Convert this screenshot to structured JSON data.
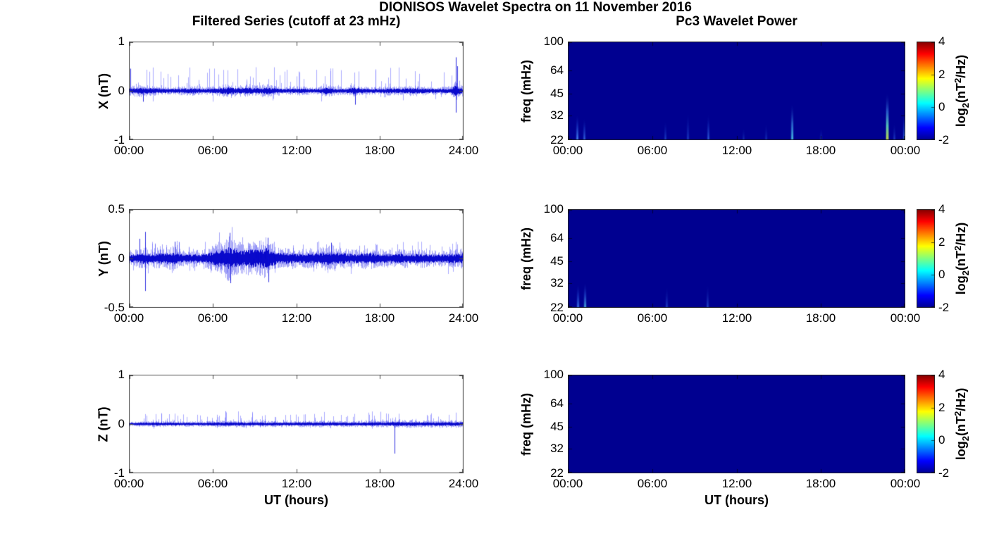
{
  "figure": {
    "title": "DIONISOS Wavelet Spectra on 11 November 2016",
    "left_column_title": "Filtered Series (cutoff at 23 mHz)",
    "right_column_title": "Pc3 Wavelet Power",
    "background": "#ffffff",
    "frame_color": "#4a4a4a",
    "heatmap_frame_color": "#222222",
    "series_colors": {
      "core": "rgba(0,0,200,0.95)",
      "fuzz": "rgba(30,30,235,0.40)",
      "spike": "rgba(90,90,255,0.50)",
      "major": "rgba(10,10,220,0.85)"
    }
  },
  "colorbar": {
    "range": [
      -2,
      4
    ],
    "ticks": [
      4,
      2,
      0,
      -2
    ],
    "tick_labels": [
      "4",
      "2",
      "0",
      "-2"
    ],
    "gradient_stops": [
      [
        0,
        "#000090"
      ],
      [
        0.125,
        "#0000ff"
      ],
      [
        0.375,
        "#00ffff"
      ],
      [
        0.625,
        "#ffff00"
      ],
      [
        0.875,
        "#ff0000"
      ],
      [
        1,
        "#800000"
      ]
    ],
    "label_parts": [
      {
        "t": "log"
      },
      {
        "t": "2",
        "s": "sub"
      },
      {
        "t": "(nT"
      },
      {
        "t": "2",
        "s": "sup"
      },
      {
        "t": "/Hz)"
      }
    ]
  },
  "chart_data": [
    {
      "id": "x-filtered",
      "type": "line",
      "panel": "left",
      "row": 0,
      "ylabel": "X (nT)",
      "xlabel": "",
      "yscale": "linear",
      "ylim": [
        -1,
        1
      ],
      "yticks": [
        1,
        0,
        -1
      ],
      "ytick_labels": [
        "1",
        "0",
        "-1"
      ],
      "xlim": [
        0,
        24
      ],
      "xticks": [
        0,
        6,
        12,
        18,
        24
      ],
      "xtick_labels": [
        "00:00",
        "06:00",
        "12:00",
        "18:00",
        "24:00"
      ],
      "series": {
        "seed": 101,
        "base_envelope": [
          [
            0,
            0.06
          ],
          [
            0.5,
            0.08
          ],
          [
            1.5,
            0.07
          ],
          [
            3,
            0.05
          ],
          [
            4.5,
            0.07
          ],
          [
            5.5,
            0.05
          ],
          [
            6.6,
            0.07
          ],
          [
            7.1,
            0.1
          ],
          [
            7.7,
            0.07
          ],
          [
            8.4,
            0.08
          ],
          [
            9.2,
            0.07
          ],
          [
            9.9,
            0.09
          ],
          [
            10.4,
            0.07
          ],
          [
            11.2,
            0.05
          ],
          [
            12.3,
            0.06
          ],
          [
            13.6,
            0.05
          ],
          [
            14.2,
            0.09
          ],
          [
            14.7,
            0.06
          ],
          [
            15.6,
            0.05
          ],
          [
            16.1,
            0.09
          ],
          [
            16.6,
            0.06
          ],
          [
            17.6,
            0.05
          ],
          [
            18.6,
            0.06
          ],
          [
            19.6,
            0.06
          ],
          [
            20.6,
            0.07
          ],
          [
            21.4,
            0.06
          ],
          [
            22.2,
            0.05
          ],
          [
            23.1,
            0.06
          ],
          [
            23.45,
            0.14
          ],
          [
            23.65,
            0.1
          ],
          [
            24,
            0.07
          ]
        ],
        "spike_groups": [
          {
            "seed": 7,
            "count": 62,
            "tmin": 0.1,
            "tmax": 23.8,
            "vmin": 0.12,
            "vmax": 0.48
          },
          {
            "seed": 8,
            "count": 14,
            "tmin": 0.5,
            "tmax": 23.5,
            "vmin": -0.22,
            "vmax": -0.1
          }
        ],
        "major_spikes": [
          [
            0.12,
            0.45
          ],
          [
            1.0,
            -0.22
          ],
          [
            16.2,
            -0.28
          ],
          [
            23.42,
            0.68
          ],
          [
            23.45,
            -0.44
          ],
          [
            23.55,
            0.5
          ]
        ]
      }
    },
    {
      "id": "x-wavelet",
      "type": "heatmap",
      "panel": "right",
      "row": 0,
      "ylabel": "freq (mHz)",
      "xlabel": "",
      "yscale": "log",
      "ylim": [
        22,
        100
      ],
      "yticks": [
        100,
        64,
        45,
        32,
        22
      ],
      "ytick_labels": [
        "100",
        "64",
        "45",
        "32",
        "22"
      ],
      "xlim": [
        0,
        24
      ],
      "xticks": [
        0,
        6,
        12,
        18,
        24
      ],
      "xtick_labels": [
        "00:00",
        "06:00",
        "12:00",
        "18:00",
        "00:00"
      ],
      "background": "#000090",
      "streaks": [
        {
          "t": 0.65,
          "ftop": 33,
          "w": 2,
          "stops": [
            [
              0,
              "rgba(80,150,255,0.90)"
            ],
            [
              0.55,
              "rgba(30,70,210,0.45)"
            ],
            [
              1,
              "rgba(0,0,144,0)"
            ]
          ]
        },
        {
          "t": 1.15,
          "ftop": 31,
          "w": 2,
          "stops": [
            [
              0,
              "rgba(60,120,240,0.80)"
            ],
            [
              0.55,
              "rgba(25,60,200,0.40)"
            ],
            [
              1,
              "rgba(0,0,144,0)"
            ]
          ]
        },
        {
          "t": 6.9,
          "ftop": 30,
          "w": 2,
          "stops": [
            [
              0,
              "rgba(40,90,220,0.60)"
            ],
            [
              0.5,
              "rgba(20,50,190,0.30)"
            ],
            [
              1,
              "rgba(0,0,144,0)"
            ]
          ]
        },
        {
          "t": 8.5,
          "ftop": 34,
          "w": 2,
          "stops": [
            [
              0,
              "rgba(45,95,225,0.55)"
            ],
            [
              0.5,
              "rgba(20,50,190,0.30)"
            ],
            [
              1,
              "rgba(0,0,144,0)"
            ]
          ]
        },
        {
          "t": 9.95,
          "ftop": 33,
          "w": 2,
          "stops": [
            [
              0,
              "rgba(60,120,240,0.70)"
            ],
            [
              0.55,
              "rgba(25,60,200,0.35)"
            ],
            [
              1,
              "rgba(0,0,144,0)"
            ]
          ]
        },
        {
          "t": 12.5,
          "ftop": 27,
          "w": 2,
          "stops": [
            [
              0,
              "rgba(35,80,210,0.45)"
            ],
            [
              1,
              "rgba(0,0,144,0)"
            ]
          ]
        },
        {
          "t": 14.1,
          "ftop": 29,
          "w": 2,
          "stops": [
            [
              0,
              "rgba(35,80,210,0.50)"
            ],
            [
              1,
              "rgba(0,0,144,0)"
            ]
          ]
        },
        {
          "t": 15.95,
          "ftop": 39,
          "w": 2,
          "stops": [
            [
              0,
              "rgba(80,215,235,0.95)"
            ],
            [
              0.45,
              "rgba(60,150,235,0.60)"
            ],
            [
              1,
              "rgba(0,0,144,0)"
            ]
          ]
        },
        {
          "t": 18.0,
          "ftop": 27,
          "w": 2,
          "stops": [
            [
              0,
              "rgba(35,80,210,0.50)"
            ],
            [
              1,
              "rgba(0,0,144,0)"
            ]
          ]
        },
        {
          "t": 22.72,
          "ftop": 46,
          "w": 3,
          "stops": [
            [
              0,
              "rgba(195,215,70,0.95)"
            ],
            [
              0.3,
              "rgba(95,220,190,0.80)"
            ],
            [
              0.6,
              "rgba(60,140,235,0.50)"
            ],
            [
              1,
              "rgba(0,0,144,0)"
            ]
          ]
        },
        {
          "t": 23.2,
          "ftop": 29,
          "w": 2,
          "stops": [
            [
              0,
              "rgba(45,95,225,0.55)"
            ],
            [
              1,
              "rgba(0,0,144,0)"
            ]
          ]
        },
        {
          "t": 23.88,
          "ftop": 34,
          "w": 2,
          "stops": [
            [
              0,
              "rgba(70,140,250,0.80)"
            ],
            [
              0.55,
              "rgba(30,70,210,0.40)"
            ],
            [
              1,
              "rgba(0,0,144,0)"
            ]
          ]
        }
      ]
    },
    {
      "id": "y-filtered",
      "type": "line",
      "panel": "left",
      "row": 1,
      "ylabel": "Y (nT)",
      "xlabel": "",
      "yscale": "linear",
      "ylim": [
        -0.5,
        0.5
      ],
      "yticks": [
        0.5,
        0,
        -0.5
      ],
      "ytick_labels": [
        "0.5",
        "0",
        "-0.5"
      ],
      "xlim": [
        0,
        24
      ],
      "xticks": [
        0,
        6,
        12,
        18,
        24
      ],
      "xtick_labels": [
        "00:00",
        "06:00",
        "12:00",
        "18:00",
        "24:00"
      ],
      "series": {
        "seed": 202,
        "base_envelope": [
          [
            0,
            0.05
          ],
          [
            0.7,
            0.06
          ],
          [
            1.1,
            0.08
          ],
          [
            1.5,
            0.06
          ],
          [
            3.2,
            0.08
          ],
          [
            4,
            0.05
          ],
          [
            5.5,
            0.06
          ],
          [
            6.2,
            0.1
          ],
          [
            6.8,
            0.12
          ],
          [
            7.2,
            0.15
          ],
          [
            7.6,
            0.12
          ],
          [
            8.1,
            0.1
          ],
          [
            8.7,
            0.12
          ],
          [
            9.3,
            0.11
          ],
          [
            9.9,
            0.14
          ],
          [
            10.3,
            0.1
          ],
          [
            10.6,
            0.07
          ],
          [
            11.5,
            0.07
          ],
          [
            12.5,
            0.06
          ],
          [
            13.5,
            0.07
          ],
          [
            14.5,
            0.09
          ],
          [
            15.2,
            0.07
          ],
          [
            16.2,
            0.06
          ],
          [
            17.2,
            0.07
          ],
          [
            18.2,
            0.06
          ],
          [
            19.2,
            0.06
          ],
          [
            20.2,
            0.06
          ],
          [
            21.2,
            0.06
          ],
          [
            22.2,
            0.05
          ],
          [
            23.2,
            0.06
          ],
          [
            24,
            0.07
          ]
        ],
        "spike_groups": [
          {
            "seed": 9,
            "count": 40,
            "tmin": 0.2,
            "tmax": 23.8,
            "vmin": 0.08,
            "vmax": 0.18
          },
          {
            "seed": 10,
            "count": 25,
            "tmin": 0.2,
            "tmax": 23.8,
            "vmin": -0.16,
            "vmax": -0.07
          }
        ],
        "major_spikes": [
          [
            0.75,
            0.2
          ],
          [
            1.15,
            0.27
          ],
          [
            1.18,
            -0.33
          ],
          [
            3.3,
            0.17
          ],
          [
            7.25,
            0.26
          ],
          [
            7.3,
            -0.25
          ],
          [
            9.95,
            0.21
          ],
          [
            10.0,
            -0.24
          ],
          [
            14.5,
            0.16
          ]
        ]
      }
    },
    {
      "id": "y-wavelet",
      "type": "heatmap",
      "panel": "right",
      "row": 1,
      "ylabel": "freq (mHz)",
      "xlabel": "",
      "yscale": "log",
      "ylim": [
        22,
        100
      ],
      "yticks": [
        100,
        64,
        45,
        32,
        22
      ],
      "ytick_labels": [
        "100",
        "64",
        "45",
        "32",
        "22"
      ],
      "xlim": [
        0,
        24
      ],
      "xticks": [
        0,
        6,
        12,
        18,
        24
      ],
      "xtick_labels": [
        "00:00",
        "06:00",
        "12:00",
        "18:00",
        "00:00"
      ],
      "background": "#000090",
      "streaks": [
        {
          "t": 0.7,
          "ftop": 32,
          "w": 2,
          "stops": [
            [
              0,
              "rgba(75,145,255,0.85)"
            ],
            [
              0.55,
              "rgba(30,70,210,0.40)"
            ],
            [
              1,
              "rgba(0,0,144,0)"
            ]
          ]
        },
        {
          "t": 1.2,
          "ftop": 33,
          "w": 2,
          "stops": [
            [
              0,
              "rgba(85,200,235,0.90)"
            ],
            [
              0.5,
              "rgba(40,90,220,0.50)"
            ],
            [
              1,
              "rgba(0,0,144,0)"
            ]
          ]
        },
        {
          "t": 7.0,
          "ftop": 31,
          "w": 2,
          "stops": [
            [
              0,
              "rgba(45,95,225,0.60)"
            ],
            [
              1,
              "rgba(0,0,144,0)"
            ]
          ]
        },
        {
          "t": 9.9,
          "ftop": 32,
          "w": 2,
          "stops": [
            [
              0,
              "rgba(50,105,230,0.60)"
            ],
            [
              1,
              "rgba(0,0,144,0)"
            ]
          ]
        }
      ]
    },
    {
      "id": "z-filtered",
      "type": "line",
      "panel": "left",
      "row": 2,
      "ylabel": "Z (nT)",
      "xlabel": "UT (hours)",
      "yscale": "linear",
      "ylim": [
        -1,
        1
      ],
      "yticks": [
        1,
        0,
        -1
      ],
      "ytick_labels": [
        "1",
        "0",
        "-1"
      ],
      "xlim": [
        0,
        24
      ],
      "xticks": [
        0,
        6,
        12,
        18,
        24
      ],
      "xtick_labels": [
        "00:00",
        "06:00",
        "12:00",
        "18:00",
        "24:00"
      ],
      "series": {
        "seed": 303,
        "base_envelope": [
          [
            0,
            0.03
          ],
          [
            2,
            0.04
          ],
          [
            5,
            0.035
          ],
          [
            7,
            0.045
          ],
          [
            9,
            0.04
          ],
          [
            12,
            0.04
          ],
          [
            14,
            0.045
          ],
          [
            16,
            0.04
          ],
          [
            18,
            0.045
          ],
          [
            20,
            0.05
          ],
          [
            22,
            0.045
          ],
          [
            24,
            0.05
          ]
        ],
        "spike_groups": [
          {
            "seed": 11,
            "count": 90,
            "tmin": 0.3,
            "tmax": 23.9,
            "vmin": 0.07,
            "vmax": 0.26
          },
          {
            "seed": 12,
            "count": 10,
            "tmin": 1,
            "tmax": 23,
            "vmin": -0.1,
            "vmax": -0.05
          }
        ],
        "major_spikes": [
          [
            19.05,
            -0.6
          ]
        ]
      }
    },
    {
      "id": "z-wavelet",
      "type": "heatmap",
      "panel": "right",
      "row": 2,
      "ylabel": "freq (mHz)",
      "xlabel": "UT (hours)",
      "yscale": "log",
      "ylim": [
        22,
        100
      ],
      "yticks": [
        100,
        64,
        45,
        32,
        22
      ],
      "ytick_labels": [
        "100",
        "64",
        "45",
        "32",
        "22"
      ],
      "xlim": [
        0,
        24
      ],
      "xticks": [
        0,
        6,
        12,
        18,
        24
      ],
      "xtick_labels": [
        "00:00",
        "06:00",
        "12:00",
        "18:00",
        "00:00"
      ],
      "background": "#000090",
      "streaks": []
    }
  ]
}
